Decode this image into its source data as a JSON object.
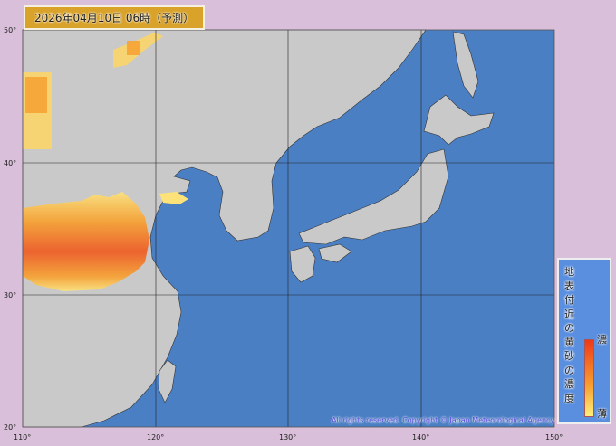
{
  "title": "2026年04月10日 06時（予測）",
  "axes": {
    "lat_labels": [
      "50°",
      "40°",
      "30°",
      "20°"
    ],
    "lon_labels": [
      "110°",
      "120°",
      "130°",
      "140°",
      "150°"
    ]
  },
  "legend": {
    "title": "地表付近の黄砂の濃度",
    "high": "濃",
    "low": "薄",
    "colors": {
      "high": "#ee3a1a",
      "mid": "#f7a030",
      "low": "#fef07a"
    }
  },
  "copyright": "All rights reserved. Copyright © Japan Meteorological Agency",
  "colors": {
    "sea": "#4a7fc4",
    "land": "#c8c8c8",
    "background": "#d9bfd9"
  }
}
